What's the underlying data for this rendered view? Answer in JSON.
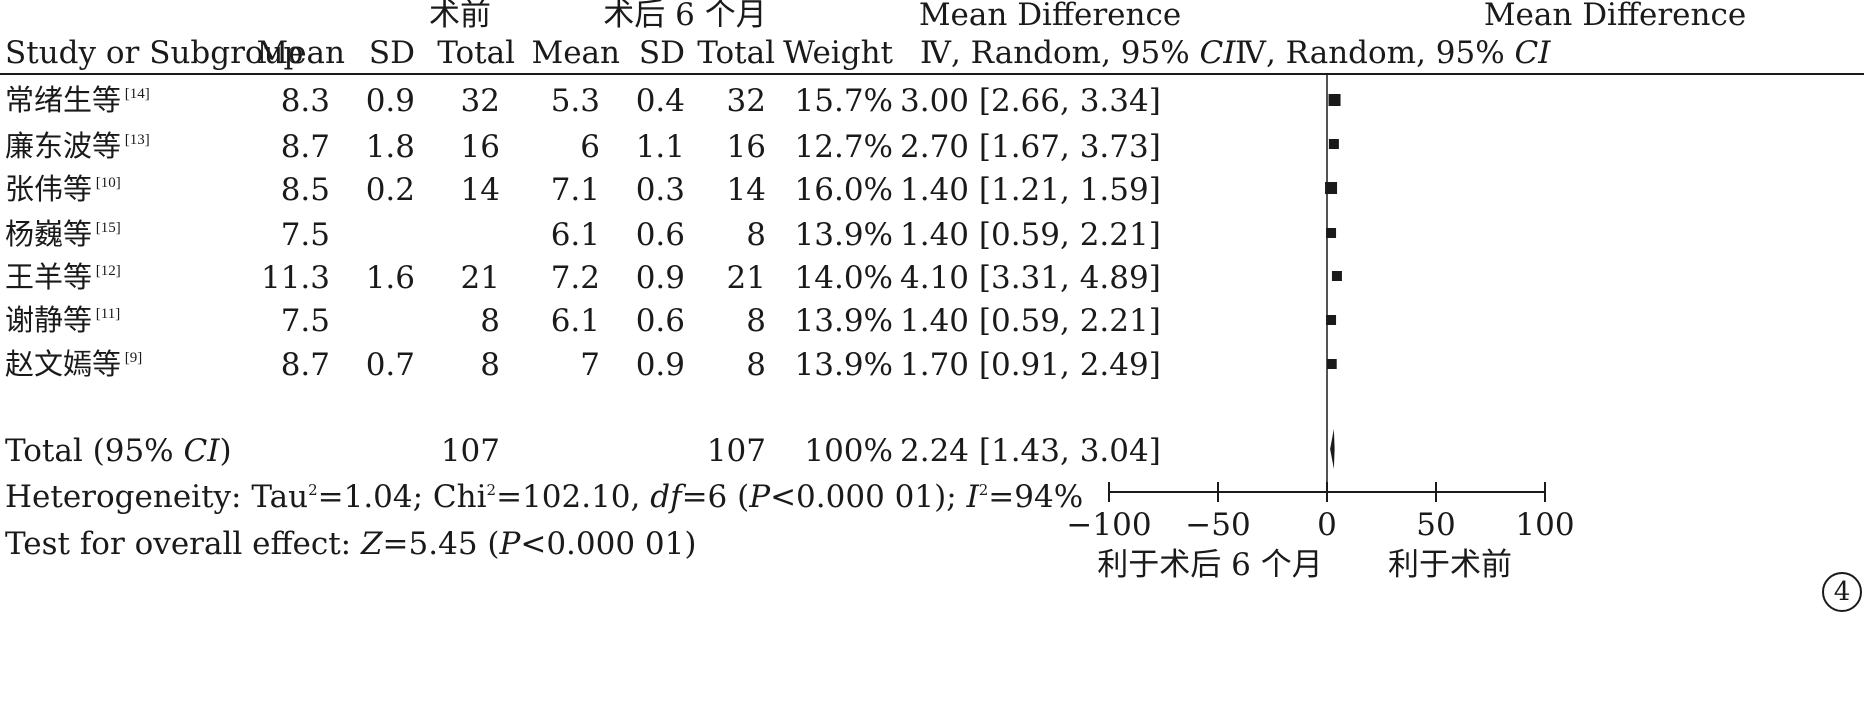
{
  "chart_data": {
    "type": "table",
    "subtype": "forest-plot",
    "headers": {
      "group1": "术前",
      "group2": "术后 6 个月",
      "md_col": "Mean Difference",
      "md_sub_pre": "Ⅳ, Random, 95% ",
      "md_sub_ci": "CI",
      "plot_col": "Mean Difference",
      "plot_sub_pre": "Ⅳ, Random, 95% ",
      "plot_sub_ci": "CI",
      "study": "Study or Subgroup",
      "mean1": "Mean",
      "sd1": "SD",
      "total1": "Total",
      "mean2": "Mean",
      "sd2": "SD",
      "total2": "Total",
      "weight": "Weight"
    },
    "studies": [
      {
        "name": "常绪生等",
        "ref": "[14]",
        "mean1": "8.3",
        "sd1": "0.9",
        "total1": "32",
        "mean2": "5.3",
        "sd2": "0.4",
        "total2": "32",
        "weight": "15.7%",
        "md_text": "3.00 [2.66, 3.34]",
        "md": 3.0,
        "ci": [
          2.66,
          3.34
        ]
      },
      {
        "name": "廉东波等",
        "ref": "[13]",
        "mean1": "8.7",
        "sd1": "1.8",
        "total1": "16",
        "mean2": "6",
        "sd2": "1.1",
        "total2": "16",
        "weight": "12.7%",
        "md_text": "2.70 [1.67, 3.73]",
        "md": 2.7,
        "ci": [
          1.67,
          3.73
        ]
      },
      {
        "name": "张伟等",
        "ref": "[10]",
        "mean1": "8.5",
        "sd1": "0.2",
        "total1": "14",
        "mean2": "7.1",
        "sd2": "0.3",
        "total2": "14",
        "weight": "16.0%",
        "md_text": "1.40 [1.21, 1.59]",
        "md": 1.4,
        "ci": [
          1.21,
          1.59
        ]
      },
      {
        "name": "杨巍等",
        "ref": "[15]",
        "mean1": "7.5",
        "sd1": "",
        "total1": "",
        "mean2": "6.1",
        "sd2": "0.6",
        "total2": "8",
        "weight": "13.9%",
        "md_text": "1.40 [0.59, 2.21]",
        "md": 1.4,
        "ci": [
          0.59,
          2.21
        ]
      },
      {
        "name": "王羊等",
        "ref": "[12]",
        "mean1": "11.3",
        "sd1": "1.6",
        "total1": "21",
        "mean2": "7.2",
        "sd2": "0.9",
        "total2": "21",
        "weight": "14.0%",
        "md_text": "4.10 [3.31, 4.89]",
        "md": 4.1,
        "ci": [
          3.31,
          4.89
        ]
      },
      {
        "name": "谢静等",
        "ref": "[11]",
        "mean1": "7.5",
        "sd1": "",
        "total1": "8",
        "mean2": "6.1",
        "sd2": "0.6",
        "total2": "8",
        "weight": "13.9%",
        "md_text": "1.40 [0.59, 2.21]",
        "md": 1.4,
        "ci": [
          0.59,
          2.21
        ]
      },
      {
        "name": "赵文嫣等",
        "ref": "[9]",
        "mean1": "8.7",
        "sd1": "0.7",
        "total1": "8",
        "mean2": "7",
        "sd2": "0.9",
        "total2": "8",
        "weight": "13.9%",
        "md_text": "1.70 [0.91, 2.49]",
        "md": 1.7,
        "ci": [
          0.91,
          2.49
        ]
      }
    ],
    "total": {
      "label_pre": "Total (95% ",
      "label_ci": "CI",
      "label_post": ")",
      "total1": "107",
      "total2": "107",
      "weight": "100%",
      "md_text": "2.24 [1.43, 3.04]",
      "md": 2.24,
      "ci": [
        1.43,
        3.04
      ]
    },
    "heterogeneity": {
      "p1": "Heterogeneity: Tau",
      "sup1": "2",
      "p2": "=1.04; Chi",
      "sup2": "2",
      "p3": "=102.10, ",
      "df": "df",
      "p4": "=6 (",
      "P": "P",
      "p5": "<0.000 01); ",
      "I": "I",
      "sup3": "2",
      "p6": "=94%"
    },
    "overall": {
      "p1": "Test for overall effect: ",
      "Z": "Z",
      "p2": "=5.45 (",
      "P": "P",
      "p3": "<0.000 01)"
    },
    "axis": {
      "xlim": [
        -100,
        100
      ],
      "ticks": [
        -100,
        -50,
        0,
        50,
        100
      ],
      "tick_labels": [
        "−100",
        "−50",
        "0",
        "50",
        "100"
      ],
      "favours_left": "利于术后 6 个月",
      "favours_right": "利于术前"
    },
    "panel_label": "4"
  }
}
